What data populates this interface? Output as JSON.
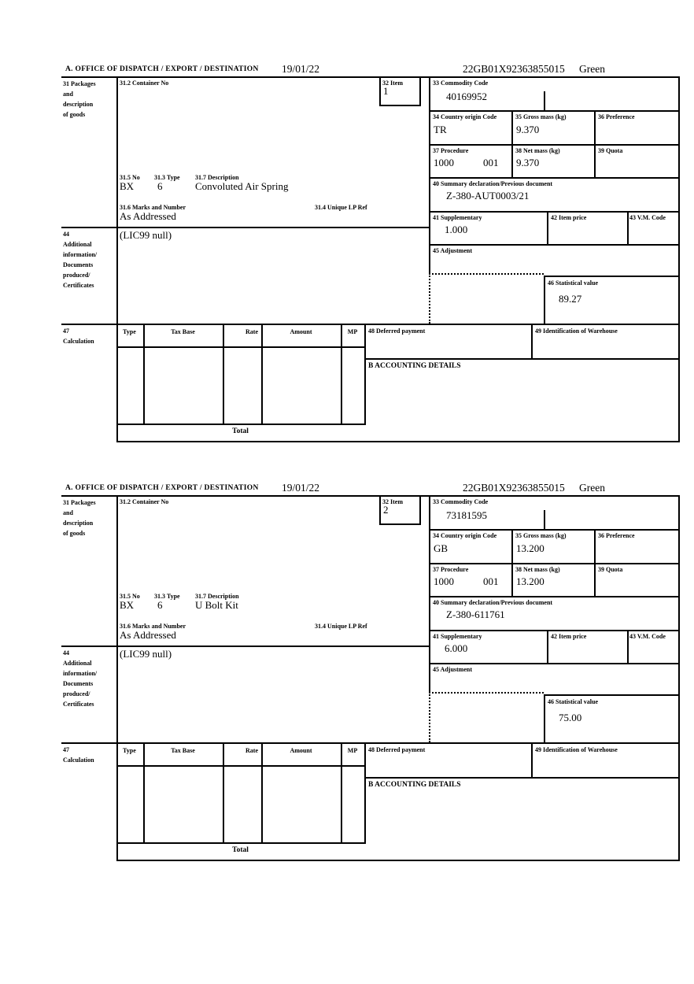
{
  "page": {
    "header": {
      "title": "A.  OFFICE OF DISPATCH / EXPORT / DESTINATION",
      "date": "19/01/22",
      "declaration_ref": "22GB01X92363855015",
      "routing": "Green"
    }
  },
  "labels": {
    "box31": "31 Packages\nand\ndescription\nof goods",
    "container_no": "31.2 Container No",
    "item": "32 Item",
    "commodity_code": "33 Commodity Code",
    "country_origin": "34 Country origin Code",
    "gross_mass": "35 Gross mass (kg)",
    "preference": "36 Preference",
    "procedure": "37 Procedure",
    "net_mass": "38 Net mass (kg)",
    "quota": "39 Quota",
    "summary_declaration": "40 Summary declaration/Previous document",
    "supplementary": "41 Supplementary",
    "item_price": "42 Item price",
    "vm_code": "43 V.M. Code",
    "box44": "44\nAdditional\ninformation/\nDocuments\nproduced/\nCertificates",
    "adjustment": "45 Adjustment",
    "statistical_value": "46 Statistical value",
    "box47": "47\nCalculation",
    "no": "31.5 No",
    "type": "31.3 Type",
    "description": "31.7 Description",
    "marks_number": "31.6 Marks and Number",
    "unique_lp_ref": "31.4 Unique LP Ref",
    "calc_type": "Type",
    "calc_tax_base": "Tax Base",
    "calc_rate": "Rate",
    "calc_amount": "Amount",
    "calc_mp": "MP",
    "deferred_payment": "48 Deferred payment",
    "warehouse_id": "49 Identification of Warehouse",
    "accounting_details": "B ACCOUNTING DETAILS",
    "total": "Total"
  },
  "items": [
    {
      "item_no": "1",
      "commodity_code": "40169952",
      "country_origin": "TR",
      "gross_mass": "9.370",
      "procedure_code": "1000",
      "procedure_ext": "001",
      "net_mass": "9.370",
      "summary_declaration": "Z-380-AUT0003/21",
      "supplementary": "1.000",
      "statistical_value": "89.27",
      "package_no": "BX",
      "package_type": "6",
      "description": "Convoluted Air Spring",
      "marks": "As Addressed",
      "additional_info": "(LIC99 null)"
    },
    {
      "item_no": "2",
      "commodity_code": "73181595",
      "country_origin": "GB",
      "gross_mass": "13.200",
      "procedure_code": "1000",
      "procedure_ext": "001",
      "net_mass": "13.200",
      "summary_declaration": "Z-380-611761",
      "supplementary": "6.000",
      "statistical_value": "75.00",
      "package_no": "BX",
      "package_type": "6",
      "description": "U Bolt Kit",
      "marks": "As Addressed",
      "additional_info": "(LIC99 null)"
    }
  ]
}
